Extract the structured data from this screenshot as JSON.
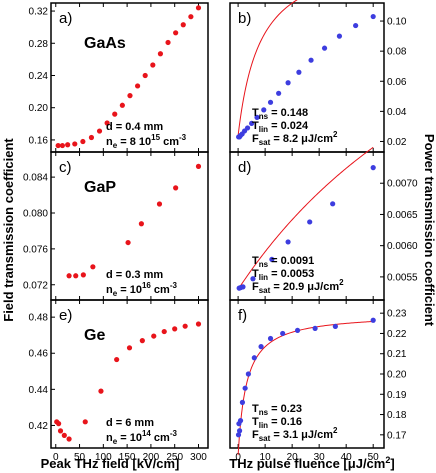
{
  "figure": {
    "left_ylabel": "Field transmission coefficient",
    "right_ylabel": "Power transmission coefficient",
    "left_xlabel": "Peak THz field [kV/cm]",
    "right_xlabel_main": "THz pulse fluence [μJ/cm",
    "right_xlabel_sup": "2",
    "right_xlabel_end": "]"
  },
  "colors": {
    "red_points": "#e8141b",
    "blue_points": "#3d3ddf",
    "fit_curve": "#e8141b",
    "axes": "#000000"
  },
  "chart_data": [
    {
      "panel": "a)",
      "type": "scatter",
      "material": "GaAs",
      "annotation": {
        "line1": "d = 0.4 mm",
        "line2_prefix": "n",
        "line2_sub": "e",
        "line2_mid": " = 8 10",
        "line2_sup": "15",
        "line2_suffix": " cm",
        "line2_sup2": "-3"
      },
      "xlim": [
        -10,
        320
      ],
      "ylim": [
        0.145,
        0.33
      ],
      "yticks": [
        "0.16",
        "0.20",
        "0.24",
        "0.28",
        "0.32"
      ],
      "ytick_values": [
        0.16,
        0.2,
        0.24,
        0.28,
        0.32
      ],
      "x": [
        5,
        14,
        25,
        40,
        57,
        75,
        92,
        108,
        124,
        140,
        156,
        172,
        188,
        204,
        220,
        236,
        252,
        268,
        284,
        300
      ],
      "y": [
        0.153,
        0.153,
        0.154,
        0.155,
        0.158,
        0.163,
        0.171,
        0.181,
        0.192,
        0.203,
        0.215,
        0.227,
        0.24,
        0.253,
        0.267,
        0.281,
        0.293,
        0.303,
        0.313,
        0.324
      ]
    },
    {
      "panel": "b)",
      "type": "scatter+fit",
      "annotation": {
        "tns_label": "T",
        "tns_sub": "ns",
        "tns_value": " = 0.148",
        "tlin_label": "T",
        "tlin_sub": "lin",
        "tlin_value": " = 0.024",
        "fsat_label": "F",
        "fsat_sub": "sat",
        "fsat_value": " =  8.2 μJ/cm",
        "fsat_sup": "2"
      },
      "xlim": [
        -3,
        54
      ],
      "ylim": [
        0.013,
        0.112
      ],
      "yticks": [
        "0.02",
        "0.04",
        "0.06",
        "0.08",
        "0.10"
      ],
      "ytick_values": [
        0.02,
        0.04,
        0.06,
        0.08,
        0.1
      ],
      "x": [
        0.2,
        0.5,
        0.9,
        1.5,
        2.4,
        3.5,
        5,
        7,
        9.5,
        12,
        15,
        18.5,
        22.5,
        27,
        32,
        37.5,
        43.5,
        50
      ],
      "y": [
        0.023,
        0.023,
        0.024,
        0.025,
        0.027,
        0.029,
        0.032,
        0.036,
        0.041,
        0.046,
        0.052,
        0.059,
        0.066,
        0.074,
        0.082,
        0.09,
        0.097,
        0.103
      ],
      "fit": {
        "Tns": 0.148,
        "Tlin": 0.024,
        "Fsat": 8.2
      }
    },
    {
      "panel": "c)",
      "type": "scatter",
      "material": "GaP",
      "annotation": {
        "line1": "d = 0.3 mm",
        "line2_prefix": "n",
        "line2_sub": "e",
        "line2_mid": " = 10",
        "line2_sup": "16",
        "line2_suffix": " cm",
        "line2_sup2": "-3"
      },
      "xlim": [
        -10,
        320
      ],
      "ylim": [
        0.0703,
        0.0868
      ],
      "yticks": [
        "0.072",
        "0.076",
        "0.080",
        "0.084"
      ],
      "ytick_values": [
        0.072,
        0.076,
        0.08,
        0.084
      ],
      "x": [
        28,
        42,
        58,
        78,
        152,
        180,
        218,
        252,
        300
      ],
      "y": [
        0.073,
        0.073,
        0.0731,
        0.074,
        0.0767,
        0.0788,
        0.081,
        0.0828,
        0.0852
      ]
    },
    {
      "panel": "d)",
      "type": "scatter+fit",
      "annotation": {
        "tns_label": "T",
        "tns_sub": "ns",
        "tns_value": " = 0.0091",
        "tlin_label": "T",
        "tlin_sub": "lin",
        "tlin_value": " = 0.0053",
        "fsat_label": "F",
        "fsat_sub": "sat",
        "fsat_value": " = 20.9 μJ/cm",
        "fsat_sup": "2"
      },
      "xlim": [
        -3,
        54
      ],
      "ylim": [
        0.00513,
        0.0075
      ],
      "yticks": [
        "0.0055",
        "0.0060",
        "0.0065",
        "0.0070"
      ],
      "ytick_values": [
        0.0055,
        0.006,
        0.0065,
        0.007
      ],
      "x": [
        0.4,
        1.0,
        1.8,
        5.5,
        12.5,
        18.5,
        26.5,
        35,
        50
      ],
      "y": [
        0.00532,
        0.00533,
        0.00534,
        0.00547,
        0.00578,
        0.00606,
        0.00638,
        0.00667,
        0.00725
      ],
      "fit": {
        "Tns": 0.0091,
        "Tlin": 0.0053,
        "Fsat": 20.9
      }
    },
    {
      "panel": "e)",
      "type": "scatter",
      "material": "Ge",
      "annotation": {
        "line1": "d = 6 mm",
        "line2_prefix": "n",
        "line2_sub": "e",
        "line2_mid": " = 10",
        "line2_sup": "14",
        "line2_suffix": " cm",
        "line2_sup2": "-3"
      },
      "xlim": [
        -10,
        320
      ],
      "ylim": [
        0.4075,
        0.4895
      ],
      "yticks": [
        "0.42",
        "0.44",
        "0.46",
        "0.48"
      ],
      "ytick_values": [
        0.42,
        0.44,
        0.46,
        0.48
      ],
      "x": [
        2,
        6,
        10,
        18,
        28,
        62,
        95,
        128,
        155,
        182,
        206,
        228,
        250,
        272,
        300
      ],
      "y": [
        0.422,
        0.421,
        0.417,
        0.4145,
        0.4125,
        0.422,
        0.439,
        0.4565,
        0.463,
        0.467,
        0.4695,
        0.472,
        0.4735,
        0.475,
        0.4762
      ]
    },
    {
      "panel": "f)",
      "type": "scatter+fit",
      "annotation": {
        "tns_label": "T",
        "tns_sub": "ns",
        "tns_value": " = 0.23",
        "tlin_label": "T",
        "tlin_sub": "lin",
        "tlin_value": " = 0.16",
        "fsat_label": "F",
        "fsat_sub": "sat",
        "fsat_value": " =  3.1 μJ/cm",
        "fsat_sup": "2"
      },
      "xlim": [
        -3,
        54
      ],
      "ylim": [
        0.1635,
        0.2365
      ],
      "yticks": [
        "0.17",
        "0.18",
        "0.19",
        "0.20",
        "0.21",
        "0.22",
        "0.23"
      ],
      "ytick_values": [
        0.17,
        0.18,
        0.19,
        0.2,
        0.21,
        0.22,
        0.23
      ],
      "xticks": [
        "0",
        "10",
        "20",
        "30",
        "40",
        "50"
      ],
      "xtick_values": [
        0,
        10,
        20,
        30,
        40,
        50
      ],
      "x": [
        0.15,
        0.3,
        0.55,
        0.9,
        1.6,
        2.6,
        3.8,
        6,
        8.5,
        12,
        16.5,
        22,
        28.5,
        36,
        50
      ],
      "y": [
        0.17,
        0.1755,
        0.172,
        0.177,
        0.186,
        0.193,
        0.2,
        0.208,
        0.2135,
        0.2175,
        0.22,
        0.2215,
        0.2225,
        0.2235,
        0.2265
      ],
      "fit": {
        "Tns": 0.23,
        "Tlin": 0.16,
        "Fsat": 3.1
      }
    }
  ],
  "x_axis_left": {
    "ticks": [
      "0",
      "50",
      "100",
      "150",
      "200",
      "250",
      "300"
    ],
    "values": [
      0,
      50,
      100,
      150,
      200,
      250,
      300
    ]
  },
  "x_axis_right": {
    "ticks": [
      "0",
      "10",
      "20",
      "30",
      "40",
      "50"
    ],
    "values": [
      0,
      10,
      20,
      30,
      40,
      50
    ]
  }
}
